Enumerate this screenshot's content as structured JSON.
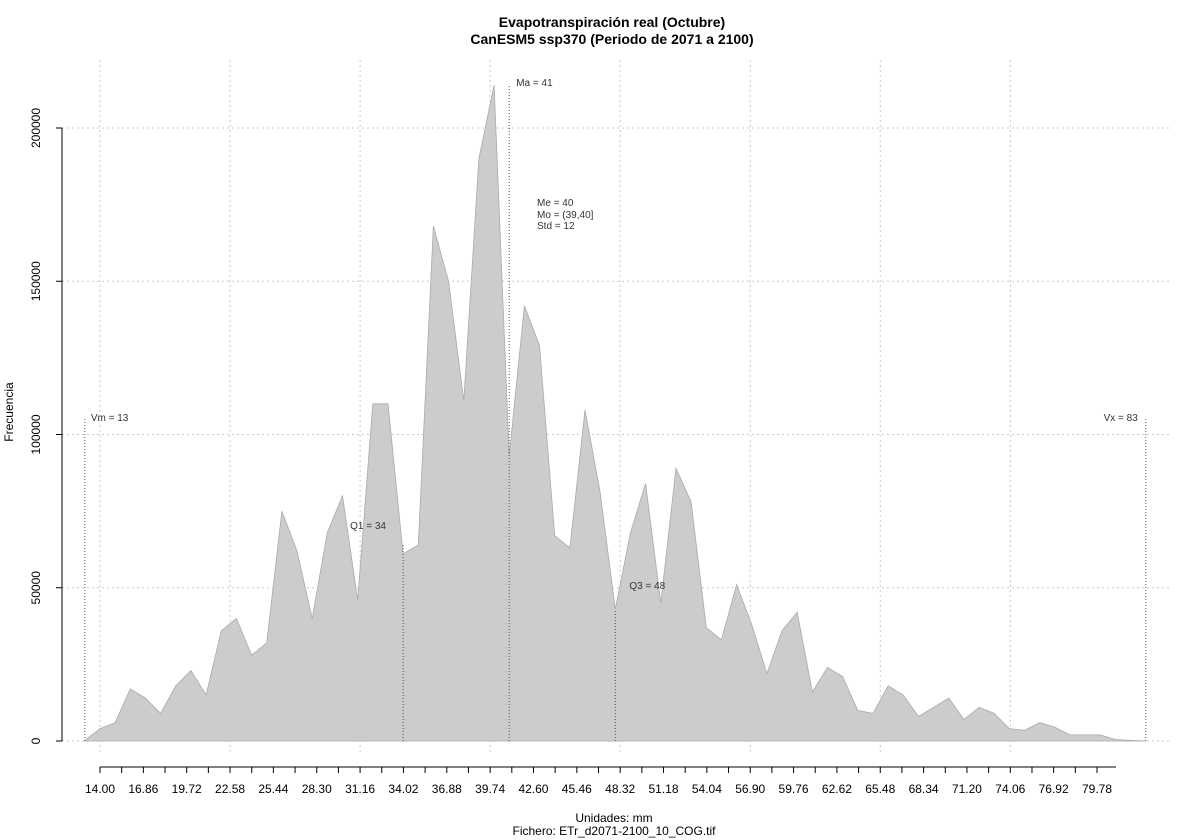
{
  "chart_data": {
    "type": "area",
    "title": "Evapotranspiración real (Octubre)",
    "subtitle": "CanESM5 ssp370 (Periodo de 2071 a 2100)",
    "xlabel": "Unidades: mm",
    "ylabel": "Frecuencia",
    "caption": "Fichero: ETr_d2071-2100_10_COG.tif",
    "grid": true,
    "xlim": [
      12.4,
      84.5
    ],
    "ylim": [
      0,
      220000
    ],
    "x_ticks": [
      "14.00",
      "16.86",
      "19.72",
      "22.58",
      "25.44",
      "28.30",
      "31.16",
      "34.02",
      "36.88",
      "39.74",
      "42.60",
      "45.46",
      "48.32",
      "51.18",
      "54.04",
      "56.90",
      "59.76",
      "62.62",
      "65.48",
      "68.34",
      "71.20",
      "74.06",
      "76.92",
      "79.78"
    ],
    "y_ticks": [
      {
        "value": 0,
        "label": "0"
      },
      {
        "value": 50000,
        "label": "50000"
      },
      {
        "value": 100000,
        "label": "100000"
      },
      {
        "value": 150000,
        "label": "150000"
      },
      {
        "value": 200000,
        "label": "200000"
      }
    ],
    "series": [
      {
        "x": [
          13,
          14,
          15,
          16,
          17,
          18,
          19,
          20,
          21,
          22,
          23,
          24,
          25,
          26,
          27,
          28,
          29,
          30,
          31,
          32,
          33,
          34,
          35,
          36,
          37,
          38,
          39,
          40,
          41,
          42,
          43,
          44,
          45,
          46,
          47,
          48,
          49,
          50,
          51,
          52,
          53,
          54,
          55,
          56,
          57,
          58,
          59,
          60,
          61,
          62,
          63,
          64,
          65,
          66,
          67,
          68,
          69,
          70,
          71,
          72,
          73,
          74,
          75,
          76,
          77,
          78,
          79,
          80,
          81,
          82,
          83
        ],
        "values": [
          200,
          4000,
          6000,
          17000,
          14000,
          9000,
          18000,
          23000,
          15000,
          36000,
          40000,
          28000,
          32000,
          75000,
          62000,
          40000,
          68000,
          80000,
          46000,
          110000,
          110000,
          61000,
          64000,
          168000,
          150000,
          111000,
          190000,
          214000,
          93000,
          142000,
          129000,
          67000,
          63000,
          108000,
          81000,
          43000,
          68000,
          84000,
          45000,
          89000,
          78000,
          37000,
          33000,
          51000,
          38000,
          22000,
          36000,
          42000,
          16000,
          24000,
          21000,
          10000,
          9000,
          18000,
          15000,
          8000,
          11000,
          14000,
          7000,
          11000,
          9000,
          4000,
          3500,
          6000,
          4500,
          2000,
          2000,
          2000,
          500,
          200,
          0
        ]
      }
    ],
    "markers": [
      {
        "label": "Vm = 13",
        "x": 13,
        "y": 105000
      },
      {
        "label": "Q1 = 34",
        "x": 34,
        "y": 64000
      },
      {
        "label": "Ma = 41",
        "x": 41,
        "y": 214000
      },
      {
        "label": "Q3 = 48",
        "x": 48,
        "y": 43000
      },
      {
        "label": "Vx = 83",
        "x": 83,
        "y": 105000
      }
    ],
    "stats_text": [
      "Me = 40",
      "Mo = (39,40]",
      "Std = 12"
    ],
    "colors": {
      "fill": "#cccccc",
      "edge": "#aaaaaa",
      "grid": "#c8c8c8",
      "marker": "#555555"
    }
  }
}
